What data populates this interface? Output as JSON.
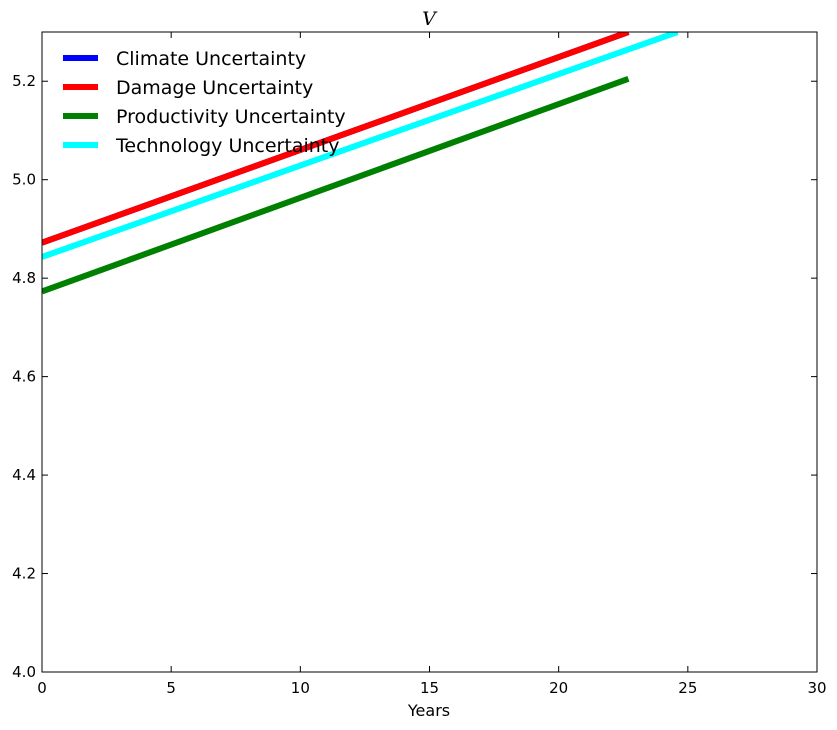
{
  "chart_data": {
    "type": "line",
    "title": "V",
    "xlabel": "Years",
    "ylabel": "",
    "xlim": [
      0,
      30
    ],
    "ylim": [
      4.0,
      5.3
    ],
    "x_ticks": [
      0,
      5,
      10,
      15,
      20,
      25,
      30
    ],
    "y_ticks": [
      4.0,
      4.2,
      4.4,
      4.6,
      4.8,
      5.0,
      5.2
    ],
    "x_tick_labels": [
      "0",
      "5",
      "10",
      "15",
      "20",
      "25",
      "30"
    ],
    "y_tick_labels": [
      "4.0",
      "4.2",
      "4.4",
      "4.6",
      "4.8",
      "5.0",
      "5.2"
    ],
    "grid": false,
    "legend_position": "top-left",
    "series": [
      {
        "name": "Climate Uncertainty",
        "color": "#0000ff",
        "x": [
          0,
          22.7
        ],
        "y": [
          4.872,
          5.3
        ]
      },
      {
        "name": "Damage Uncertainty",
        "color": "#ff0000",
        "x": [
          0,
          22.7
        ],
        "y": [
          4.872,
          5.3
        ]
      },
      {
        "name": "Productivity Uncertainty",
        "color": "#008000",
        "x": [
          0,
          22.7
        ],
        "y": [
          4.773,
          5.205
        ]
      },
      {
        "name": "Technology Uncertainty",
        "color": "#00ffff",
        "x": [
          0,
          24.6
        ],
        "y": [
          4.843,
          5.3
        ]
      }
    ]
  }
}
